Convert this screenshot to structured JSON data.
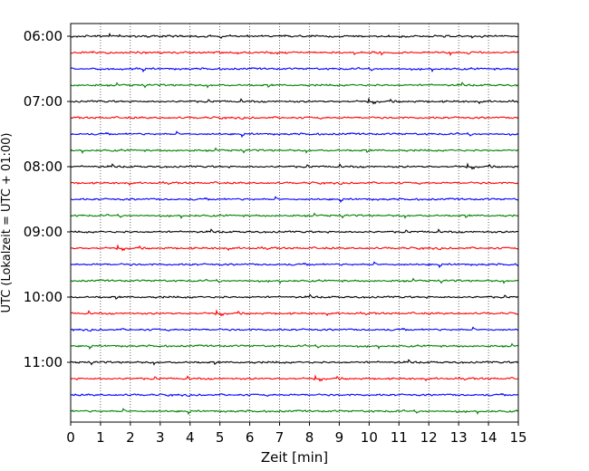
{
  "chart_data": {
    "type": "line",
    "title": "",
    "xlabel": "Zeit  [min]",
    "ylabel": "UTC (Lokalzeit = UTC + 01:00)",
    "xlim": [
      0,
      15
    ],
    "x_ticks": [
      "0",
      "1",
      "2",
      "3",
      "4",
      "5",
      "6",
      "7",
      "8",
      "9",
      "10",
      "11",
      "12",
      "13",
      "14",
      "15"
    ],
    "y_tick_labels": [
      "06:00",
      "07:00",
      "08:00",
      "09:00",
      "10:00",
      "11:00"
    ],
    "grid": "vertical-dotted",
    "trace_interval_minutes": 15,
    "trace_start": "06:00",
    "trace_count": 24,
    "trace_colors": [
      "#000000",
      "#ff0000",
      "#0000ff",
      "#008000"
    ]
  }
}
